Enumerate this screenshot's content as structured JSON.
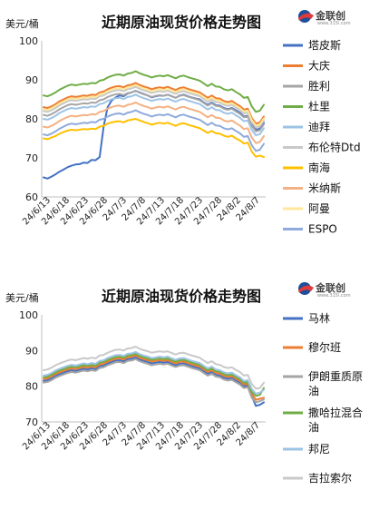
{
  "logo": {
    "name": "金联创",
    "sub": "www.315i.com"
  },
  "chart_data": [
    {
      "type": "line",
      "title": "近期原油现货价格走势图",
      "ylabel": "美元/桶",
      "ylim": [
        60,
        100
      ],
      "yticks": [
        60,
        70,
        80,
        90,
        100
      ],
      "grid": false,
      "legend": "right",
      "xticks": [
        "24/6/13",
        "24/6/18",
        "24/6/23",
        "24/6/28",
        "24/7/3",
        "24/7/8",
        "24/7/13",
        "24/7/18",
        "24/7/23",
        "24/7/28",
        "24/8/2",
        "24/8/7"
      ],
      "series": [
        {
          "name": "塔皮斯",
          "color": "#4472c4",
          "values": [
            65,
            64.7,
            65.2,
            65.8,
            66.5,
            67,
            67.6,
            68,
            68.3,
            68.4,
            68.8,
            68.7,
            69.5,
            69.4,
            70.2,
            78,
            83,
            84.7,
            85.5,
            86,
            85.8,
            86.5,
            86.8,
            87.2,
            86.8,
            86.4,
            86,
            85.5,
            85.8,
            86,
            85.9,
            86.2,
            85.8,
            85.4,
            86,
            86.2,
            85.8,
            85.5,
            85.2,
            85,
            84.2,
            83.6,
            84.2,
            83.5,
            83.4,
            82.8,
            82.5,
            82.8,
            82.2,
            81.6,
            80.6,
            80.8,
            78.6,
            77.2,
            77.5,
            79
          ]
        },
        {
          "name": "大庆",
          "color": "#ed7d31",
          "values": [
            83,
            82.8,
            83.2,
            83.8,
            84.5,
            85,
            85.5,
            85.8,
            85.6,
            85.8,
            86,
            85.9,
            86.2,
            86.1,
            86.8,
            87,
            87.6,
            88,
            88.3,
            88.4,
            88.1,
            88.6,
            88.8,
            89.2,
            88.7,
            88.3,
            88,
            87.6,
            87.9,
            88.1,
            87.9,
            88.2,
            87.8,
            87.4,
            87.9,
            88.1,
            87.7,
            87.4,
            87.1,
            86.8,
            86.1,
            85.4,
            86,
            85.3,
            85.2,
            84.6,
            84.3,
            84.6,
            83.9,
            83.3,
            82.4,
            82.6,
            80.2,
            78.8,
            79.1,
            80.6
          ]
        },
        {
          "name": "胜利",
          "color": "#a5a5a5",
          "values": [
            81,
            80.8,
            81.2,
            81.8,
            82.5,
            83,
            83.5,
            83.8,
            83.6,
            83.8,
            84,
            83.9,
            84.2,
            84.1,
            84.8,
            85,
            85.6,
            86,
            86.3,
            86.4,
            86.1,
            86.6,
            86.8,
            87.2,
            86.7,
            86.3,
            86,
            85.6,
            85.9,
            86.1,
            85.9,
            86.2,
            85.8,
            85.4,
            85.9,
            86.1,
            85.7,
            85.4,
            85.1,
            84.8,
            84.1,
            83.4,
            84,
            83.3,
            83.2,
            82.6,
            82.3,
            82.6,
            81.9,
            81.3,
            80.4,
            80.6,
            78.2,
            76.8,
            77.1,
            78.6
          ]
        },
        {
          "name": "杜里",
          "color": "#70ad47",
          "values": [
            86,
            85.8,
            86.2,
            86.8,
            87.5,
            88,
            88.5,
            88.8,
            88.6,
            88.8,
            89,
            88.9,
            89.2,
            89.1,
            89.8,
            90,
            90.6,
            91,
            91.3,
            91.4,
            91.1,
            91.6,
            91.8,
            92.2,
            91.7,
            91.3,
            91,
            90.6,
            90.9,
            91.1,
            90.9,
            91.2,
            90.8,
            90.4,
            90.9,
            91.1,
            90.7,
            90.4,
            90.1,
            89.8,
            89.1,
            88.4,
            89,
            88.3,
            88.2,
            87.6,
            87.3,
            87.6,
            86.9,
            86.3,
            85.4,
            85.6,
            83.2,
            81.8,
            82.1,
            83.6
          ]
        },
        {
          "name": "迪拜",
          "color": "#9dc3e6",
          "values": [
            80,
            79.8,
            80.2,
            80.8,
            81.5,
            82,
            82.5,
            82.8,
            82.6,
            82.8,
            83,
            82.9,
            83.2,
            83.1,
            83.8,
            84,
            84.6,
            85,
            85.3,
            85.4,
            85.1,
            85.6,
            85.8,
            86.2,
            85.7,
            85.3,
            85,
            84.6,
            84.9,
            85.1,
            84.9,
            85.2,
            84.8,
            84.4,
            84.9,
            85.1,
            84.7,
            84.4,
            84.1,
            83.8,
            83.1,
            82.4,
            83,
            82.3,
            82.2,
            81.6,
            81.3,
            81.6,
            80.9,
            80.3,
            79.4,
            79.6,
            77.2,
            75.8,
            76.1,
            77.6
          ]
        },
        {
          "name": "布伦特Dtd",
          "color": "#c9c9c9",
          "values": [
            82,
            81.8,
            82.2,
            82.8,
            83.5,
            84,
            84.5,
            84.8,
            84.6,
            84.8,
            85,
            84.9,
            85.2,
            85.1,
            85.8,
            86,
            86.6,
            87,
            87.3,
            87.4,
            87.1,
            87.6,
            87.8,
            88.2,
            87.7,
            87.3,
            87,
            86.6,
            86.9,
            87.1,
            86.9,
            87.2,
            86.8,
            86.4,
            86.9,
            87.1,
            86.7,
            86.4,
            86.1,
            85.8,
            85.1,
            84.4,
            85,
            84.3,
            84.2,
            83.6,
            83.3,
            83.6,
            82.9,
            82.3,
            81.4,
            81.6,
            79.2,
            77.8,
            78.1,
            79.6
          ]
        },
        {
          "name": "南海",
          "color": "#ffc000",
          "values": [
            75,
            74.8,
            75.2,
            75.6,
            76.2,
            76.6,
            77,
            77.2,
            77.1,
            77.2,
            77.4,
            77.3,
            77.5,
            77.4,
            78,
            78.2,
            78.8,
            79.1,
            79.3,
            79.4,
            79.1,
            79.6,
            79.8,
            80,
            79.6,
            79.2,
            78.9,
            78.5,
            78.8,
            79,
            78.8,
            79,
            78.6,
            78.2,
            78.7,
            78.9,
            78.5,
            78.2,
            77.9,
            77.6,
            77,
            76.4,
            76.9,
            76.3,
            76.2,
            75.7,
            75.4,
            75.7,
            75,
            74.5,
            73.7,
            73.9,
            71.6,
            70.3,
            70.6,
            70.2
          ]
        },
        {
          "name": "米纳斯",
          "color": "#f4b183",
          "values": [
            78,
            77.8,
            78.2,
            78.8,
            79.5,
            80,
            80.5,
            80.8,
            80.6,
            80.8,
            81,
            80.9,
            81.2,
            81.1,
            81.8,
            82,
            82.6,
            83,
            83.3,
            83.4,
            83.1,
            83.6,
            83.8,
            84.2,
            83.7,
            83.3,
            83,
            82.6,
            82.9,
            83.1,
            82.9,
            83.2,
            82.8,
            82.4,
            82.9,
            83.1,
            82.7,
            82.4,
            82.1,
            81.8,
            81.1,
            80.4,
            81,
            80.3,
            80.2,
            79.6,
            79.3,
            79.6,
            78.9,
            78.3,
            77.4,
            77.6,
            75.2,
            73.8,
            74.1,
            75.6
          ]
        },
        {
          "name": "阿曼",
          "color": "#ffe699",
          "values": [
            82.5,
            82.3,
            82.7,
            83.3,
            84,
            84.5,
            85,
            85.3,
            85.1,
            85.3,
            85.5,
            85.4,
            85.7,
            85.6,
            86.3,
            86.5,
            87.1,
            87.5,
            87.8,
            87.9,
            87.6,
            88.1,
            88.3,
            88.7,
            88.2,
            87.8,
            87.5,
            87.1,
            87.4,
            87.6,
            87.4,
            87.7,
            87.3,
            86.9,
            87.4,
            87.6,
            87.2,
            86.9,
            86.6,
            86.3,
            85.6,
            84.9,
            85.5,
            84.8,
            84.7,
            84.1,
            83.8,
            84.1,
            83.4,
            82.8,
            81.9,
            82.1,
            79.7,
            78.3,
            78.6,
            80.1
          ]
        },
        {
          "name": "ESPO",
          "color": "#8faadc",
          "values": [
            76,
            75.8,
            76.2,
            76.8,
            77.5,
            78,
            78.5,
            78.8,
            78.6,
            78.8,
            79,
            78.9,
            79.2,
            79.1,
            79.8,
            80,
            80.6,
            81,
            81.3,
            81.4,
            81.1,
            81.6,
            81.8,
            82.2,
            81.7,
            81.3,
            81,
            80.6,
            80.9,
            81.1,
            80.9,
            81.2,
            80.8,
            80.4,
            80.9,
            81.1,
            80.7,
            80.4,
            80.1,
            79.8,
            79.1,
            78.4,
            79,
            78.3,
            78.2,
            77.6,
            77.3,
            77.6,
            76.9,
            76.3,
            75.4,
            75.6,
            73.2,
            71.8,
            72.1,
            73.6
          ]
        }
      ]
    },
    {
      "type": "line",
      "title": "近期原油现货价格走势图",
      "ylabel": "美元/桶",
      "ylim": [
        70,
        100
      ],
      "yticks": [
        70,
        80,
        90,
        100
      ],
      "grid": false,
      "legend": "right",
      "xticks": [
        "24/6/13",
        "24/6/18",
        "24/6/23",
        "24/6/28",
        "24/7/3",
        "24/7/8",
        "24/7/13",
        "24/7/18",
        "24/7/23",
        "24/7/28",
        "24/8/2",
        "24/8/7"
      ],
      "series": [
        {
          "name": "马林",
          "color": "#4472c4",
          "values": [
            81.5,
            81.7,
            82.2,
            82.9,
            83.4,
            83.8,
            84.2,
            84.5,
            84.3,
            84.6,
            84.9,
            84.7,
            85,
            84.8,
            85.6,
            85.8,
            86.4,
            86.8,
            87.2,
            87.3,
            87,
            87.6,
            87.7,
            88.1,
            87.5,
            87.1,
            86.8,
            86.4,
            86.6,
            86.8,
            86.6,
            86.8,
            86.3,
            85.9,
            86.3,
            86.4,
            86,
            85.6,
            85.3,
            85,
            84.2,
            83.5,
            84,
            83.2,
            83,
            82.4,
            82.1,
            82.3,
            81.6,
            81,
            80,
            80.2,
            77.2,
            74.5,
            74.8,
            75.5
          ]
        },
        {
          "name": "穆尔班",
          "color": "#ed7d31",
          "values": [
            82,
            82.2,
            82.7,
            83.4,
            83.9,
            84.3,
            84.7,
            85,
            84.8,
            85.1,
            85.4,
            85.2,
            85.5,
            85.3,
            86.1,
            86.3,
            86.9,
            87.3,
            87.7,
            87.8,
            87.5,
            88.1,
            88.2,
            88.6,
            88,
            87.6,
            87.3,
            86.9,
            87.1,
            87.3,
            87.1,
            87.3,
            86.8,
            86.4,
            86.8,
            86.9,
            86.5,
            86.1,
            85.8,
            85.5,
            84.7,
            84,
            84.5,
            83.7,
            83.5,
            82.9,
            82.6,
            82.8,
            82.1,
            81.5,
            80.5,
            80.7,
            77.8,
            76.2,
            76.5,
            76.8
          ]
        },
        {
          "name": "伊朗重质原油",
          "color": "#a5a5a5",
          "values": [
            81,
            81.2,
            81.7,
            82.4,
            82.9,
            83.3,
            83.7,
            84,
            83.8,
            84.1,
            84.4,
            84.2,
            84.5,
            84.3,
            85.1,
            85.3,
            85.9,
            86.3,
            86.7,
            86.8,
            86.5,
            87.1,
            87.2,
            87.6,
            87,
            86.6,
            86.3,
            85.9,
            86.1,
            86.3,
            86.1,
            86.3,
            85.8,
            85.4,
            85.8,
            85.9,
            85.5,
            85.1,
            84.8,
            84.5,
            83.7,
            83,
            83.5,
            82.7,
            82.5,
            81.9,
            81.6,
            81.8,
            81.1,
            80.5,
            79.5,
            79.7,
            76.8,
            75.5,
            75.8,
            76.3
          ]
        },
        {
          "name": "撒哈拉混合油",
          "color": "#70ad47",
          "values": [
            82.5,
            82.7,
            83.2,
            83.9,
            84.4,
            84.8,
            85.2,
            85.5,
            85.3,
            85.6,
            85.9,
            85.7,
            86,
            85.8,
            86.6,
            86.8,
            87.4,
            87.8,
            88.2,
            88.3,
            88,
            88.6,
            88.7,
            89.1,
            88.5,
            88.1,
            87.8,
            87.4,
            87.6,
            87.8,
            87.6,
            87.8,
            87.3,
            86.9,
            87.3,
            87.4,
            87,
            86.6,
            86.3,
            86,
            85.2,
            84.5,
            85,
            84.2,
            84,
            83.4,
            83.1,
            83.3,
            82.6,
            82,
            81,
            81.2,
            78.4,
            77.3,
            77.6,
            79.5
          ]
        },
        {
          "name": "邦尼",
          "color": "#9dc3e6",
          "values": [
            83,
            83.2,
            83.7,
            84.4,
            84.9,
            85.3,
            85.7,
            86,
            85.8,
            86.1,
            86.4,
            86.2,
            86.5,
            86.3,
            87.1,
            87.3,
            87.9,
            88.3,
            88.7,
            88.8,
            88.5,
            89.1,
            89.2,
            89.6,
            89,
            88.6,
            88.3,
            87.9,
            88.1,
            88.3,
            88.1,
            88.3,
            87.8,
            87.4,
            87.8,
            87.9,
            87.5,
            87.1,
            86.8,
            86.5,
            85.7,
            85,
            85.5,
            84.7,
            84.5,
            83.9,
            83.6,
            83.8,
            83.1,
            82.5,
            81.5,
            81.7,
            79.2,
            77.9,
            78.2,
            79
          ]
        },
        {
          "name": "吉拉索尔",
          "color": "#c9c9c9",
          "values": [
            84.5,
            84.7,
            85.2,
            85.9,
            86.4,
            86.8,
            87.2,
            87.5,
            87.3,
            87.6,
            87.9,
            87.7,
            88,
            87.8,
            88.6,
            88.8,
            89.4,
            89.8,
            90.2,
            90.3,
            90,
            90.6,
            90.7,
            91.1,
            90.5,
            90.1,
            89.8,
            89.4,
            89.6,
            89.8,
            89.6,
            89.8,
            89.3,
            88.9,
            89.3,
            89.4,
            89,
            88.6,
            88.3,
            88,
            87.2,
            86.5,
            87,
            86.2,
            86,
            85.4,
            85.1,
            85.3,
            84.6,
            84,
            83,
            83.2,
            80.6,
            79.3,
            79.5,
            81
          ]
        }
      ]
    }
  ]
}
